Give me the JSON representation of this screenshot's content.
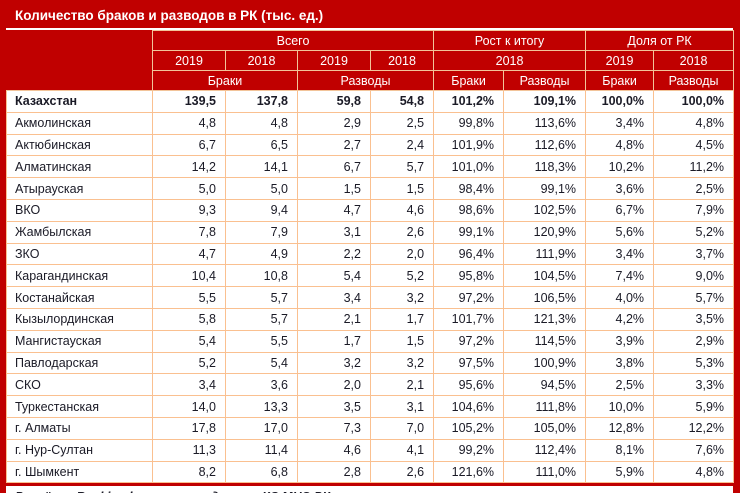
{
  "title": "Количество браков и разводов в РК (тыс. ед.)",
  "footer": {
    "text": "Расчёты Ranking.kz на основе данных КС МНЭ РК"
  },
  "theme": {
    "header_bg": "#C00000",
    "header_text": "#FFFFFF",
    "grid_border": "#FAC090",
    "body_bg": "#FFFFFF",
    "body_text": "#1A1A26"
  },
  "chart_data": {
    "type": "table",
    "title": "Количество браков и разводов в РК (тыс. ед.)",
    "units": "тыс. ед.",
    "header_rows": [
      [
        {
          "label": "",
          "colspan": 1,
          "rowspan": 3,
          "corner": true
        },
        {
          "label": "Всего",
          "colspan": 4,
          "rowspan": 1
        },
        {
          "label": "Рост к итогу",
          "colspan": 2,
          "rowspan": 1
        },
        {
          "label": "Доля от РК",
          "colspan": 2,
          "rowspan": 1
        }
      ],
      [
        {
          "label": "2019",
          "colspan": 1,
          "rowspan": 1
        },
        {
          "label": "2018",
          "colspan": 1,
          "rowspan": 1
        },
        {
          "label": "2019",
          "colspan": 1,
          "rowspan": 1
        },
        {
          "label": "2018",
          "colspan": 1,
          "rowspan": 1
        },
        {
          "label": "2018",
          "colspan": 2,
          "rowspan": 1
        },
        {
          "label": "2019",
          "colspan": 1,
          "rowspan": 1
        },
        {
          "label": "2018",
          "colspan": 1,
          "rowspan": 1
        }
      ],
      [
        {
          "label": "Браки",
          "colspan": 2,
          "rowspan": 1
        },
        {
          "label": "Разводы",
          "colspan": 2,
          "rowspan": 1
        },
        {
          "label": "Браки",
          "colspan": 1,
          "rowspan": 1
        },
        {
          "label": "Разводы",
          "colspan": 1,
          "rowspan": 1
        },
        {
          "label": "Браки",
          "colspan": 1,
          "rowspan": 1
        },
        {
          "label": "Разводы",
          "colspan": 1,
          "rowspan": 1
        }
      ]
    ],
    "columns": [
      "region",
      "vsego_braki_2019",
      "vsego_braki_2018",
      "vsego_razvody_2019",
      "vsego_razvody_2018",
      "rost_k_itogu_2018_braki",
      "rost_k_itogu_2018_razvody",
      "dolya_ot_rk_2019_braki",
      "dolya_ot_rk_2018_razvody"
    ],
    "rows": [
      {
        "region": "Казахстан",
        "is_total": true,
        "values": [
          "139,5",
          "137,8",
          "59,8",
          "54,8",
          "101,2%",
          "109,1%",
          "100,0%",
          "100,0%"
        ]
      },
      {
        "region": "Акмолинская",
        "is_total": false,
        "values": [
          "4,8",
          "4,8",
          "2,9",
          "2,5",
          "99,8%",
          "113,6%",
          "3,4%",
          "4,8%"
        ]
      },
      {
        "region": "Актюбинская",
        "is_total": false,
        "values": [
          "6,7",
          "6,5",
          "2,7",
          "2,4",
          "101,9%",
          "112,6%",
          "4,8%",
          "4,5%"
        ]
      },
      {
        "region": "Алматинская",
        "is_total": false,
        "values": [
          "14,2",
          "14,1",
          "6,7",
          "5,7",
          "101,0%",
          "118,3%",
          "10,2%",
          "11,2%"
        ]
      },
      {
        "region": "Атырауская",
        "is_total": false,
        "values": [
          "5,0",
          "5,0",
          "1,5",
          "1,5",
          "98,4%",
          "99,1%",
          "3,6%",
          "2,5%"
        ]
      },
      {
        "region": "ВКО",
        "is_total": false,
        "values": [
          "9,3",
          "9,4",
          "4,7",
          "4,6",
          "98,6%",
          "102,5%",
          "6,7%",
          "7,9%"
        ]
      },
      {
        "region": "Жамбылская",
        "is_total": false,
        "values": [
          "7,8",
          "7,9",
          "3,1",
          "2,6",
          "99,1%",
          "120,9%",
          "5,6%",
          "5,2%"
        ]
      },
      {
        "region": "ЗКО",
        "is_total": false,
        "values": [
          "4,7",
          "4,9",
          "2,2",
          "2,0",
          "96,4%",
          "111,9%",
          "3,4%",
          "3,7%"
        ]
      },
      {
        "region": "Карагандинская",
        "is_total": false,
        "values": [
          "10,4",
          "10,8",
          "5,4",
          "5,2",
          "95,8%",
          "104,5%",
          "7,4%",
          "9,0%"
        ]
      },
      {
        "region": "Костанайская",
        "is_total": false,
        "values": [
          "5,5",
          "5,7",
          "3,4",
          "3,2",
          "97,2%",
          "106,5%",
          "4,0%",
          "5,7%"
        ]
      },
      {
        "region": "Кызылординская",
        "is_total": false,
        "values": [
          "5,8",
          "5,7",
          "2,1",
          "1,7",
          "101,7%",
          "121,3%",
          "4,2%",
          "3,5%"
        ]
      },
      {
        "region": "Мангистауская",
        "is_total": false,
        "values": [
          "5,4",
          "5,5",
          "1,7",
          "1,5",
          "97,2%",
          "114,5%",
          "3,9%",
          "2,9%"
        ]
      },
      {
        "region": "Павлодарская",
        "is_total": false,
        "values": [
          "5,2",
          "5,4",
          "3,2",
          "3,2",
          "97,5%",
          "100,9%",
          "3,8%",
          "5,3%"
        ]
      },
      {
        "region": "СКО",
        "is_total": false,
        "values": [
          "3,4",
          "3,6",
          "2,0",
          "2,1",
          "95,6%",
          "94,5%",
          "2,5%",
          "3,3%"
        ]
      },
      {
        "region": "Туркестанская",
        "is_total": false,
        "values": [
          "14,0",
          "13,3",
          "3,5",
          "3,1",
          "104,6%",
          "111,8%",
          "10,0%",
          "5,9%"
        ]
      },
      {
        "region": "г. Алматы",
        "is_total": false,
        "values": [
          "17,8",
          "17,0",
          "7,3",
          "7,0",
          "105,2%",
          "105,0%",
          "12,8%",
          "12,2%"
        ]
      },
      {
        "region": "г. Нур-Султан",
        "is_total": false,
        "values": [
          "11,3",
          "11,4",
          "4,6",
          "4,1",
          "99,2%",
          "112,4%",
          "8,1%",
          "7,6%"
        ]
      },
      {
        "region": "г. Шымкент",
        "is_total": false,
        "values": [
          "8,2",
          "6,8",
          "2,8",
          "2,6",
          "121,6%",
          "111,0%",
          "5,9%",
          "4,8%"
        ]
      }
    ]
  }
}
